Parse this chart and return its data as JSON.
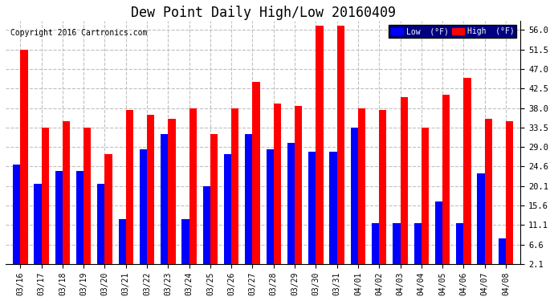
{
  "title": "Dew Point Daily High/Low 20160409",
  "copyright": "Copyright 2016 Cartronics.com",
  "categories": [
    "03/16",
    "03/17",
    "03/18",
    "03/19",
    "03/20",
    "03/21",
    "03/22",
    "03/23",
    "03/24",
    "03/25",
    "03/26",
    "03/27",
    "03/28",
    "03/29",
    "03/30",
    "03/31",
    "04/01",
    "04/02",
    "04/03",
    "04/04",
    "04/05",
    "04/06",
    "04/07",
    "04/08"
  ],
  "high_values": [
    51.5,
    33.5,
    35.0,
    33.5,
    27.5,
    37.5,
    36.5,
    35.5,
    38.0,
    32.0,
    38.0,
    44.0,
    39.0,
    38.5,
    57.0,
    57.0,
    38.0,
    37.5,
    40.5,
    33.5,
    41.0,
    45.0,
    35.5,
    35.0
  ],
  "low_values": [
    25.0,
    20.5,
    23.5,
    23.5,
    20.5,
    12.5,
    28.5,
    32.0,
    12.5,
    20.0,
    27.5,
    32.0,
    28.5,
    30.0,
    28.0,
    28.0,
    33.5,
    11.5,
    11.5,
    11.5,
    16.5,
    11.5,
    23.0,
    8.0
  ],
  "high_color": "#FF0000",
  "low_color": "#0000FF",
  "bg_color": "#FFFFFF",
  "plot_bg_color": "#FFFFFF",
  "grid_color": "#C0C0C0",
  "yticks": [
    2.1,
    6.6,
    11.1,
    15.6,
    20.1,
    24.6,
    29.0,
    33.5,
    38.0,
    42.5,
    47.0,
    51.5,
    56.0
  ],
  "ylim": [
    2.1,
    58.0
  ],
  "bar_width": 0.35,
  "legend_low_label": "Low  (°F)",
  "legend_high_label": "High  (°F)"
}
